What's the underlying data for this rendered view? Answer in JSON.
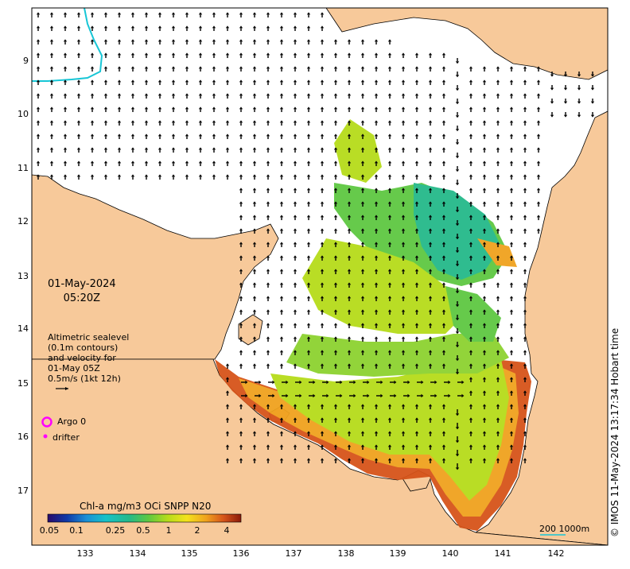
{
  "map": {
    "date_line1": "01-May-2024",
    "date_line2": "05:20Z",
    "legend_lines": [
      "Altimetric sealevel",
      "(0.1m contours)",
      "and velocity for",
      "01-May 05Z",
      "0.5m/s (1kt 12h)"
    ],
    "argo_label": "Argo 0",
    "drifter_label": "drifter",
    "colorbar_title": "Chl-a mg/m3 OCi SNPP N20",
    "colorbar_ticks": [
      "0.05",
      "0.1",
      "0.25",
      "0.5",
      "1",
      "2",
      "4"
    ],
    "credit": "© IMOS 11-May-2024 13:17:34 Hobart time",
    "scale_label": "200  1000m",
    "y_ticks": [
      "9",
      "10",
      "11",
      "12",
      "13",
      "14",
      "15",
      "16",
      "17"
    ],
    "x_ticks": [
      "133",
      "134",
      "135",
      "136",
      "137",
      "138",
      "139",
      "140",
      "141",
      "142"
    ],
    "colors": {
      "land": "#f7c99a",
      "argo": "#ff00ff",
      "isobath": "#17c6d6"
    }
  }
}
